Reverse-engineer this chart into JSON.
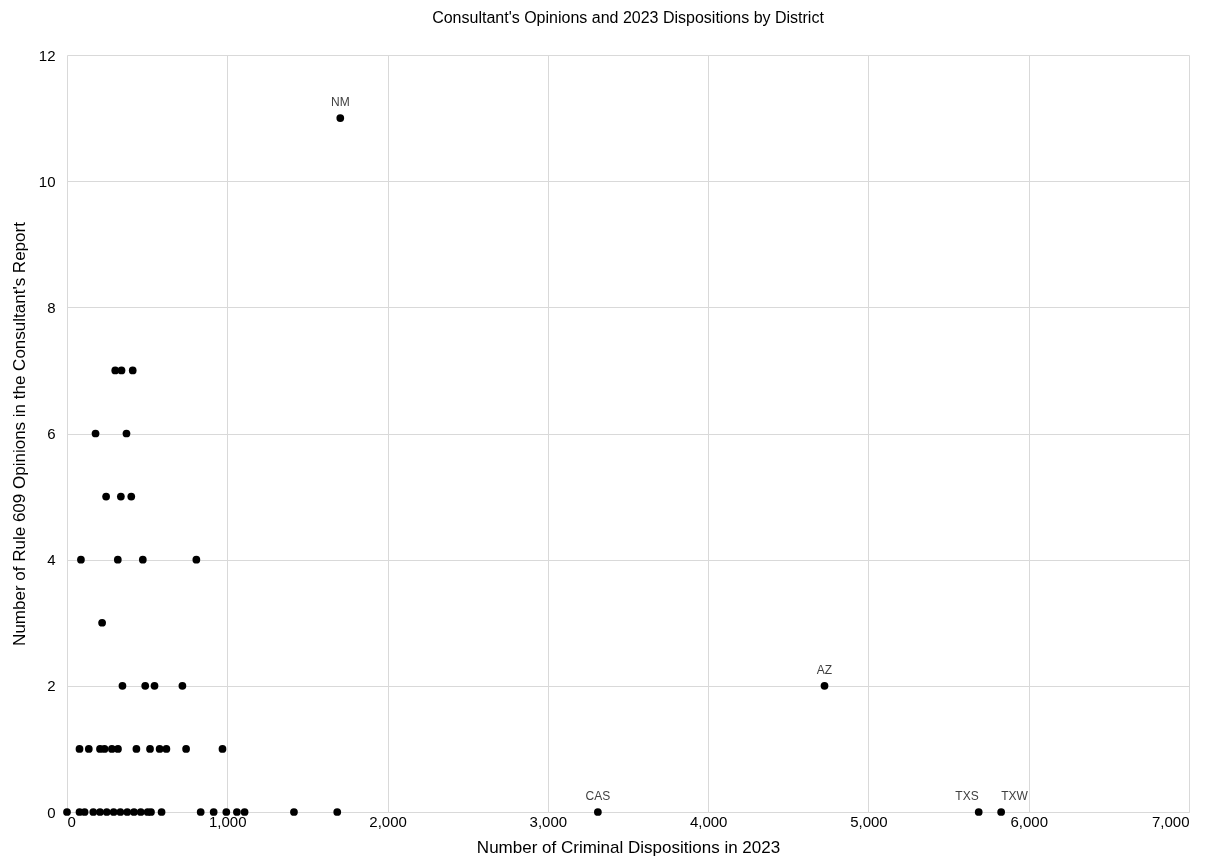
{
  "chart_data": {
    "type": "scatter",
    "title": "Consultant's Opinions and 2023 Dispositions by District",
    "xlabel": "Number of Criminal Dispositions in 2023",
    "ylabel": "Number of Rule 609 Opinions in the Consultant's Report",
    "x": [
      301,
      340,
      410,
      178,
      371,
      244,
      336,
      401,
      87,
      317,
      473,
      807,
      219,
      346,
      488,
      546,
      720,
      78,
      136,
      206,
      234,
      280,
      318,
      433,
      518,
      578,
      620,
      743,
      970,
      0,
      78,
      110,
      164,
      206,
      248,
      291,
      333,
      376,
      418,
      460,
      503,
      524,
      590,
      834,
      915,
      994,
      1060,
      1108,
      1416,
      1686,
      1705,
      4726,
      3312,
      5688,
      5828
    ],
    "series": [
      {
        "color": "#000000",
        "values": [
          7,
          7,
          7,
          6,
          6,
          5,
          5,
          5,
          4,
          4,
          4,
          4,
          3,
          2,
          2,
          2,
          2,
          1,
          1,
          1,
          1,
          1,
          1,
          1,
          1,
          1,
          1,
          1,
          1,
          0,
          0,
          0,
          0,
          0,
          0,
          0,
          0,
          0,
          0,
          0,
          0,
          0,
          0,
          0,
          0,
          0,
          0,
          0,
          0,
          0,
          11,
          2,
          0,
          0,
          0
        ]
      }
    ],
    "xlim": [
      0,
      7000
    ],
    "xticks": [
      0,
      {
        "value": 1000,
        "label": "1,000"
      },
      {
        "value": 2000,
        "label": "2,000"
      },
      {
        "value": 3000,
        "label": "3,000"
      },
      {
        "value": 4000,
        "label": "4,000"
      },
      {
        "value": 5000,
        "label": "5,000"
      },
      {
        "value": 6000,
        "label": "6,000"
      },
      {
        "value": 7000,
        "label": "7,000"
      }
    ],
    "ylim": [
      0,
      12
    ],
    "yticks": [
      0,
      2,
      4,
      6,
      8,
      10,
      12
    ],
    "grid": true,
    "marker": "circle",
    "annotations": [
      {
        "text": "NM",
        "x": 1705,
        "y": 11
      },
      {
        "text": "AZ",
        "x": 4726,
        "y": 2
      },
      {
        "text": "CAS",
        "x": 3312,
        "y": 0
      },
      {
        "text": "TXS",
        "x": 5688,
        "y": 0
      },
      {
        "text": "TXW",
        "x": 5828,
        "y": 0
      }
    ]
  }
}
